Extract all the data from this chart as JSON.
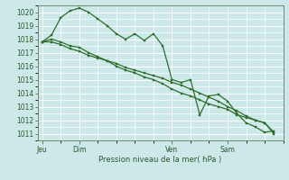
{
  "background_color": "#cce8e8",
  "grid_color": "#ffffff",
  "line_color": "#2d6e2d",
  "marker_color": "#2d6e2d",
  "xlabel_text": "Pression niveau de la mer( hPa )",
  "ylim": [
    1010.5,
    1020.5
  ],
  "yticks": [
    1011,
    1012,
    1013,
    1014,
    1015,
    1016,
    1017,
    1018,
    1019,
    1020
  ],
  "day_labels": [
    "Jeu",
    "Dim",
    "Ven",
    "Sam"
  ],
  "day_positions": [
    0,
    4,
    14,
    20
  ],
  "xlim": [
    -0.5,
    26
  ],
  "series1_x": [
    0,
    1,
    2,
    3,
    4,
    5,
    6,
    7,
    8,
    9,
    10,
    11,
    12,
    13,
    14,
    15,
    16,
    17,
    18,
    19,
    20,
    21,
    22,
    23,
    24,
    25
  ],
  "series1_y": [
    1017.8,
    1018.3,
    1019.6,
    1020.1,
    1020.3,
    1020.0,
    1019.5,
    1019.0,
    1018.4,
    1018.0,
    1018.4,
    1017.9,
    1018.4,
    1017.5,
    1015.0,
    1014.8,
    1015.0,
    1012.4,
    1013.8,
    1013.9,
    1013.4,
    1012.5,
    1011.8,
    1011.5,
    1011.1,
    1011.2
  ],
  "series2_x": [
    0,
    1,
    2,
    3,
    4,
    5,
    6,
    7,
    8,
    9,
    10,
    11,
    12,
    13,
    14,
    15,
    16,
    17,
    18,
    19,
    20,
    21,
    22,
    23,
    24,
    25
  ],
  "series2_y": [
    1017.8,
    1018.0,
    1017.8,
    1017.5,
    1017.4,
    1017.0,
    1016.7,
    1016.4,
    1016.0,
    1015.7,
    1015.5,
    1015.2,
    1015.0,
    1014.7,
    1014.3,
    1014.0,
    1013.8,
    1013.5,
    1013.2,
    1013.0,
    1012.8,
    1012.4,
    1012.2,
    1012.0,
    1011.8,
    1011.0
  ],
  "series3_x": [
    0,
    1,
    2,
    3,
    4,
    5,
    6,
    7,
    8,
    9,
    10,
    11,
    12,
    13,
    14,
    15,
    16,
    17,
    18,
    19,
    20,
    21,
    22,
    23,
    24,
    25
  ],
  "series3_y": [
    1017.8,
    1017.8,
    1017.6,
    1017.3,
    1017.1,
    1016.8,
    1016.6,
    1016.4,
    1016.2,
    1015.9,
    1015.7,
    1015.5,
    1015.3,
    1015.1,
    1014.8,
    1014.6,
    1014.3,
    1014.0,
    1013.7,
    1013.4,
    1013.0,
    1012.7,
    1012.3,
    1012.0,
    1011.8,
    1011.1
  ]
}
